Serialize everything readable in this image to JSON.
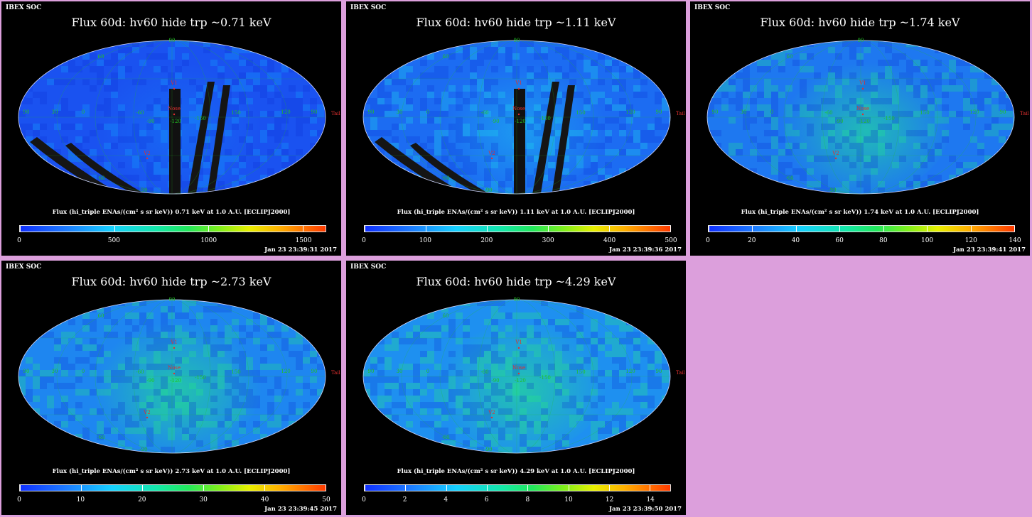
{
  "panels": [
    {
      "org": "IBEX SOC",
      "title": "Flux   60d: hv60 hide trp ~0.71 keV",
      "colorbar_title": "Flux (hi_triple ENAs/(cm² s sr keV))  0.71 keV at 1.0 A.U. [ECLIPJ2000]",
      "ticks": [
        "0",
        "500",
        "1000",
        "1500"
      ],
      "tick_values": [
        0,
        500,
        1000,
        1500
      ],
      "range": [
        0,
        1620
      ],
      "timestamp": "Jan 23 23:39:31 2017",
      "base_color": "#1a52f0",
      "glow_color": "#12a8ff",
      "glow_strength": 0.25,
      "gaps": true
    },
    {
      "org": "IBEX SOC",
      "title": "Flux   60d: hv60 hide trp ~1.11 keV",
      "colorbar_title": "Flux (hi_triple ENAs/(cm² s sr keV))  1.11 keV at 1.0 A.U. [ECLIPJ2000]",
      "ticks": [
        "0",
        "100",
        "200",
        "300",
        "400",
        "500"
      ],
      "tick_values": [
        0,
        100,
        200,
        300,
        400,
        500
      ],
      "range": [
        0,
        500
      ],
      "timestamp": "Jan 23 23:39:36 2017",
      "base_color": "#1c6cf2",
      "glow_color": "#1ee0ee",
      "glow_strength": 0.4,
      "gaps": true
    },
    {
      "org": "IBEX SOC",
      "title": "Flux   60d: hv60 hide trp ~1.74 keV",
      "colorbar_title": "Flux (hi_triple ENAs/(cm² s sr keV))  1.74 keV at 1.0 A.U. [ECLIPJ2000]",
      "ticks": [
        "0",
        "20",
        "40",
        "60",
        "80",
        "100",
        "120",
        "140"
      ],
      "tick_values": [
        0,
        20,
        40,
        60,
        80,
        100,
        120,
        140
      ],
      "range": [
        0,
        140
      ],
      "timestamp": "Jan 23 23:39:41 2017",
      "base_color": "#1e78f0",
      "glow_color": "#22e890",
      "glow_strength": 0.6,
      "gaps": false
    },
    {
      "org": "IBEX SOC",
      "title": "Flux   60d: hv60 hide trp ~2.73 keV",
      "colorbar_title": "Flux (hi_triple ENAs/(cm² s sr keV))  2.73 keV at 1.0 A.U. [ECLIPJ2000]",
      "ticks": [
        "0",
        "10",
        "20",
        "30",
        "40",
        "50"
      ],
      "tick_values": [
        0,
        10,
        20,
        30,
        40,
        50
      ],
      "range": [
        0,
        50
      ],
      "timestamp": "Jan 23 23:39:45 2017",
      "base_color": "#1e86f0",
      "glow_color": "#24ec80",
      "glow_strength": 0.6,
      "gaps": false
    },
    {
      "org": "IBEX SOC",
      "title": "Flux   60d: hv60 hide trp ~4.29 keV",
      "colorbar_title": "Flux (hi_triple ENAs/(cm² s sr keV))  4.29 keV at 1.0 A.U. [ECLIPJ2000]",
      "ticks": [
        "0",
        "2",
        "4",
        "6",
        "8",
        "10",
        "12",
        "14"
      ],
      "tick_values": [
        0,
        2,
        4,
        6,
        8,
        10,
        12,
        14
      ],
      "range": [
        0,
        15
      ],
      "timestamp": "Jan 23 23:39:50 2017",
      "base_color": "#1e90f0",
      "glow_color": "#26ee7c",
      "glow_strength": 0.55,
      "gaps": false
    }
  ],
  "map_labels": {
    "north": "90",
    "lat_pos": "60",
    "lat_neg": "-60",
    "south": "-90",
    "nose": "Nose",
    "v1": "V1",
    "v2": "V2",
    "tail": "Tail",
    "lon_left": "30",
    "lon_lefter": "0",
    "lon_m60": "-60",
    "lon_m90": "-90",
    "lon_m120": "-120",
    "lon_m150": "-150",
    "lon_right": "150",
    "lon_righter": "120",
    "lon_far_right": "90"
  },
  "colors": {
    "background": "#dc9fdc",
    "panel": "#000000",
    "grid": "#22c022",
    "feature": "#e03030"
  }
}
